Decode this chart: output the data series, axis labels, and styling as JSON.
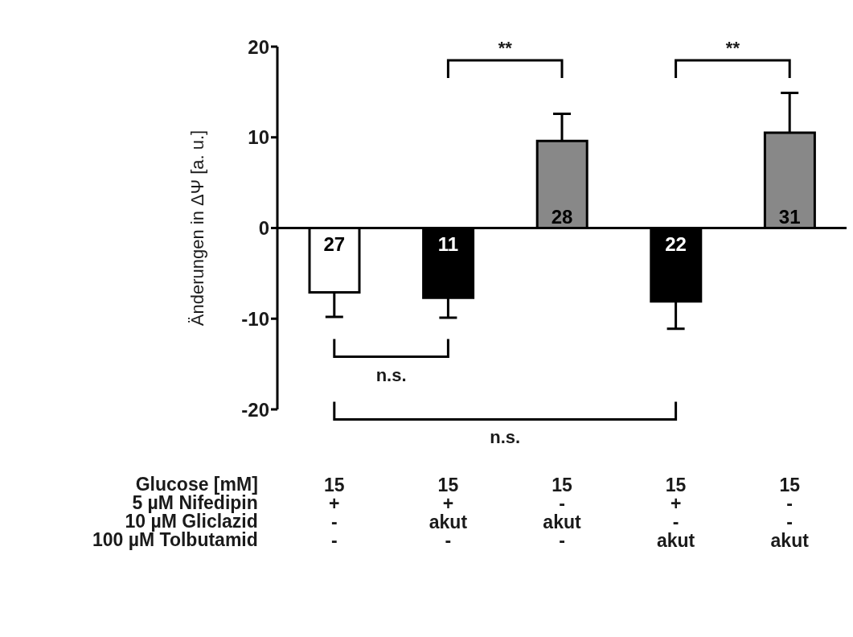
{
  "chart_data": {
    "type": "bar",
    "ylabel": "Änderungen in ΔΨ [a. u.]",
    "categories": [
      "15\n+\n-\n-",
      "15\n+\nakut\n-",
      "15\n-\nakut\n-",
      "15\n+\n-\nakut",
      "15\n-\n-\nakut"
    ],
    "values": [
      -7.1,
      -7.7,
      9.6,
      -8.1,
      10.5
    ],
    "errors": [
      [
        -9.8,
        -7.1
      ],
      [
        -9.9,
        -7.7
      ],
      [
        9.6,
        12.6
      ],
      [
        -11.1,
        -8.1
      ],
      [
        10.5,
        14.9
      ]
    ],
    "colors": [
      "#ffffff",
      "#000000",
      "#888888",
      "#000000",
      "#888888"
    ],
    "ylim": [
      -20,
      20
    ],
    "yticks": [
      -20,
      -10,
      0,
      10,
      20
    ],
    "ref_lines": [
      {
        "axis": "y",
        "value": 0
      }
    ],
    "annotations": [
      "Glucose [mM]",
      "5 µM Nifedipin",
      "10 µM Gliclazid",
      "100 µM Tolbutamid",
      "**",
      "**",
      "n.s.",
      "n.s.",
      "27",
      "11",
      "28",
      "22",
      "31"
    ]
  }
}
